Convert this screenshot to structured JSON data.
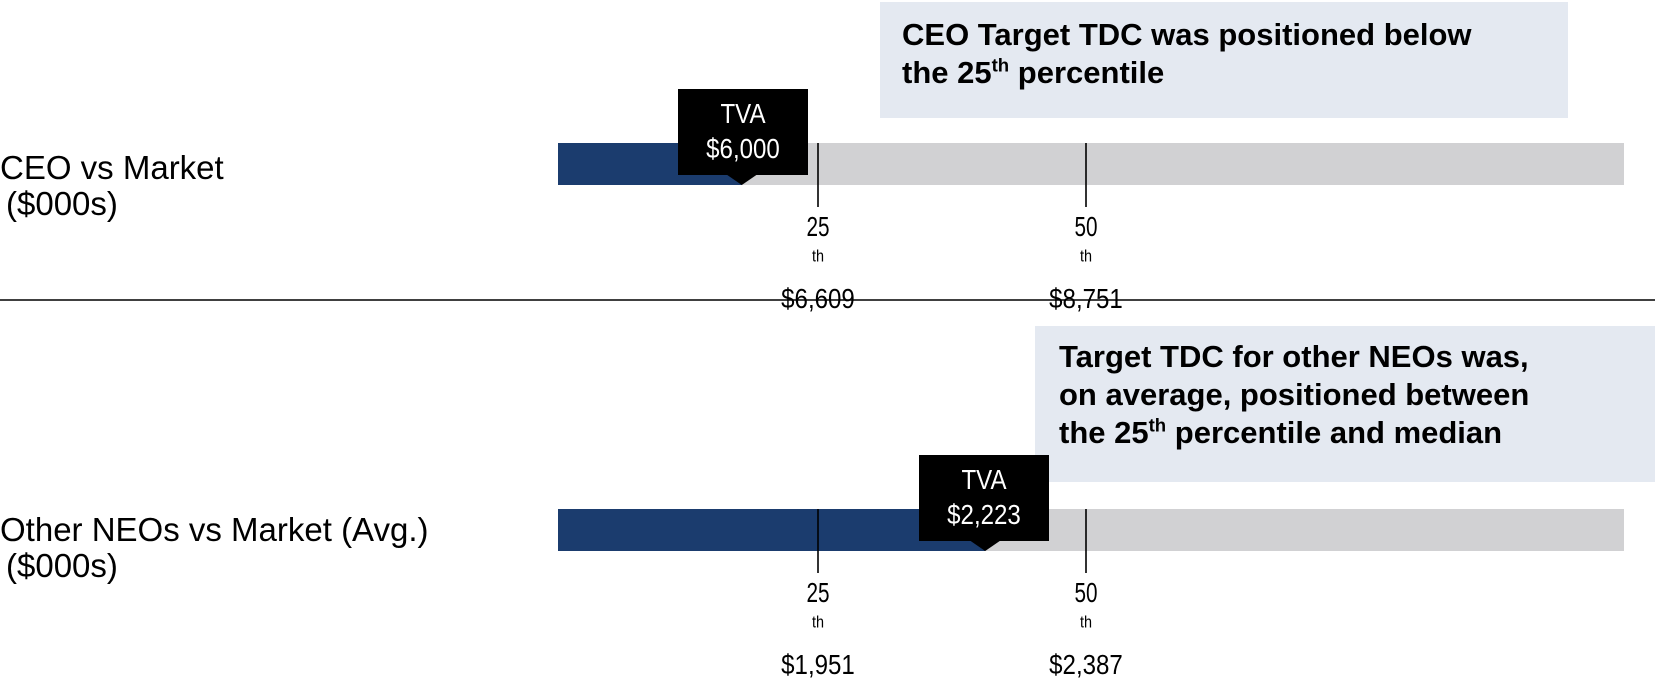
{
  "colors": {
    "tva_bar": "#1b3c6e",
    "market_bar": "#d1d1d3",
    "callout_bg": "#e4e9f1",
    "tva_box": "#000000",
    "tva_text": "#ffffff"
  },
  "chart_data": [
    {
      "type": "bar",
      "orientation": "horizontal",
      "label": "CEO vs Market",
      "unit_label": "($000s)",
      "callout_parts": [
        "CEO Target TDC was positioned below",
        "the 25",
        "th",
        " percentile"
      ],
      "tva": {
        "label": "TVA",
        "value": 6000,
        "value_text": "$6,000"
      },
      "markers": [
        {
          "percentile": "25",
          "suffix": "th",
          "value": 6609,
          "value_text": "$6,609"
        },
        {
          "percentile": "50",
          "suffix": "th",
          "value": 8751,
          "value_text": "$8,751"
        }
      ]
    },
    {
      "type": "bar",
      "orientation": "horizontal",
      "label": "Other NEOs vs Market (Avg.)",
      "unit_label": "($000s)",
      "callout_parts": [
        "Target TDC for other NEOs was,",
        "on average, positioned between",
        "the 25",
        "th",
        " percentile and median"
      ],
      "tva": {
        "label": "TVA",
        "value": 2223,
        "value_text": "$2,223"
      },
      "markers": [
        {
          "percentile": "25",
          "suffix": "th",
          "value": 1951,
          "value_text": "$1,951"
        },
        {
          "percentile": "50",
          "suffix": "th",
          "value": 2387,
          "value_text": "$2,387"
        }
      ]
    }
  ]
}
